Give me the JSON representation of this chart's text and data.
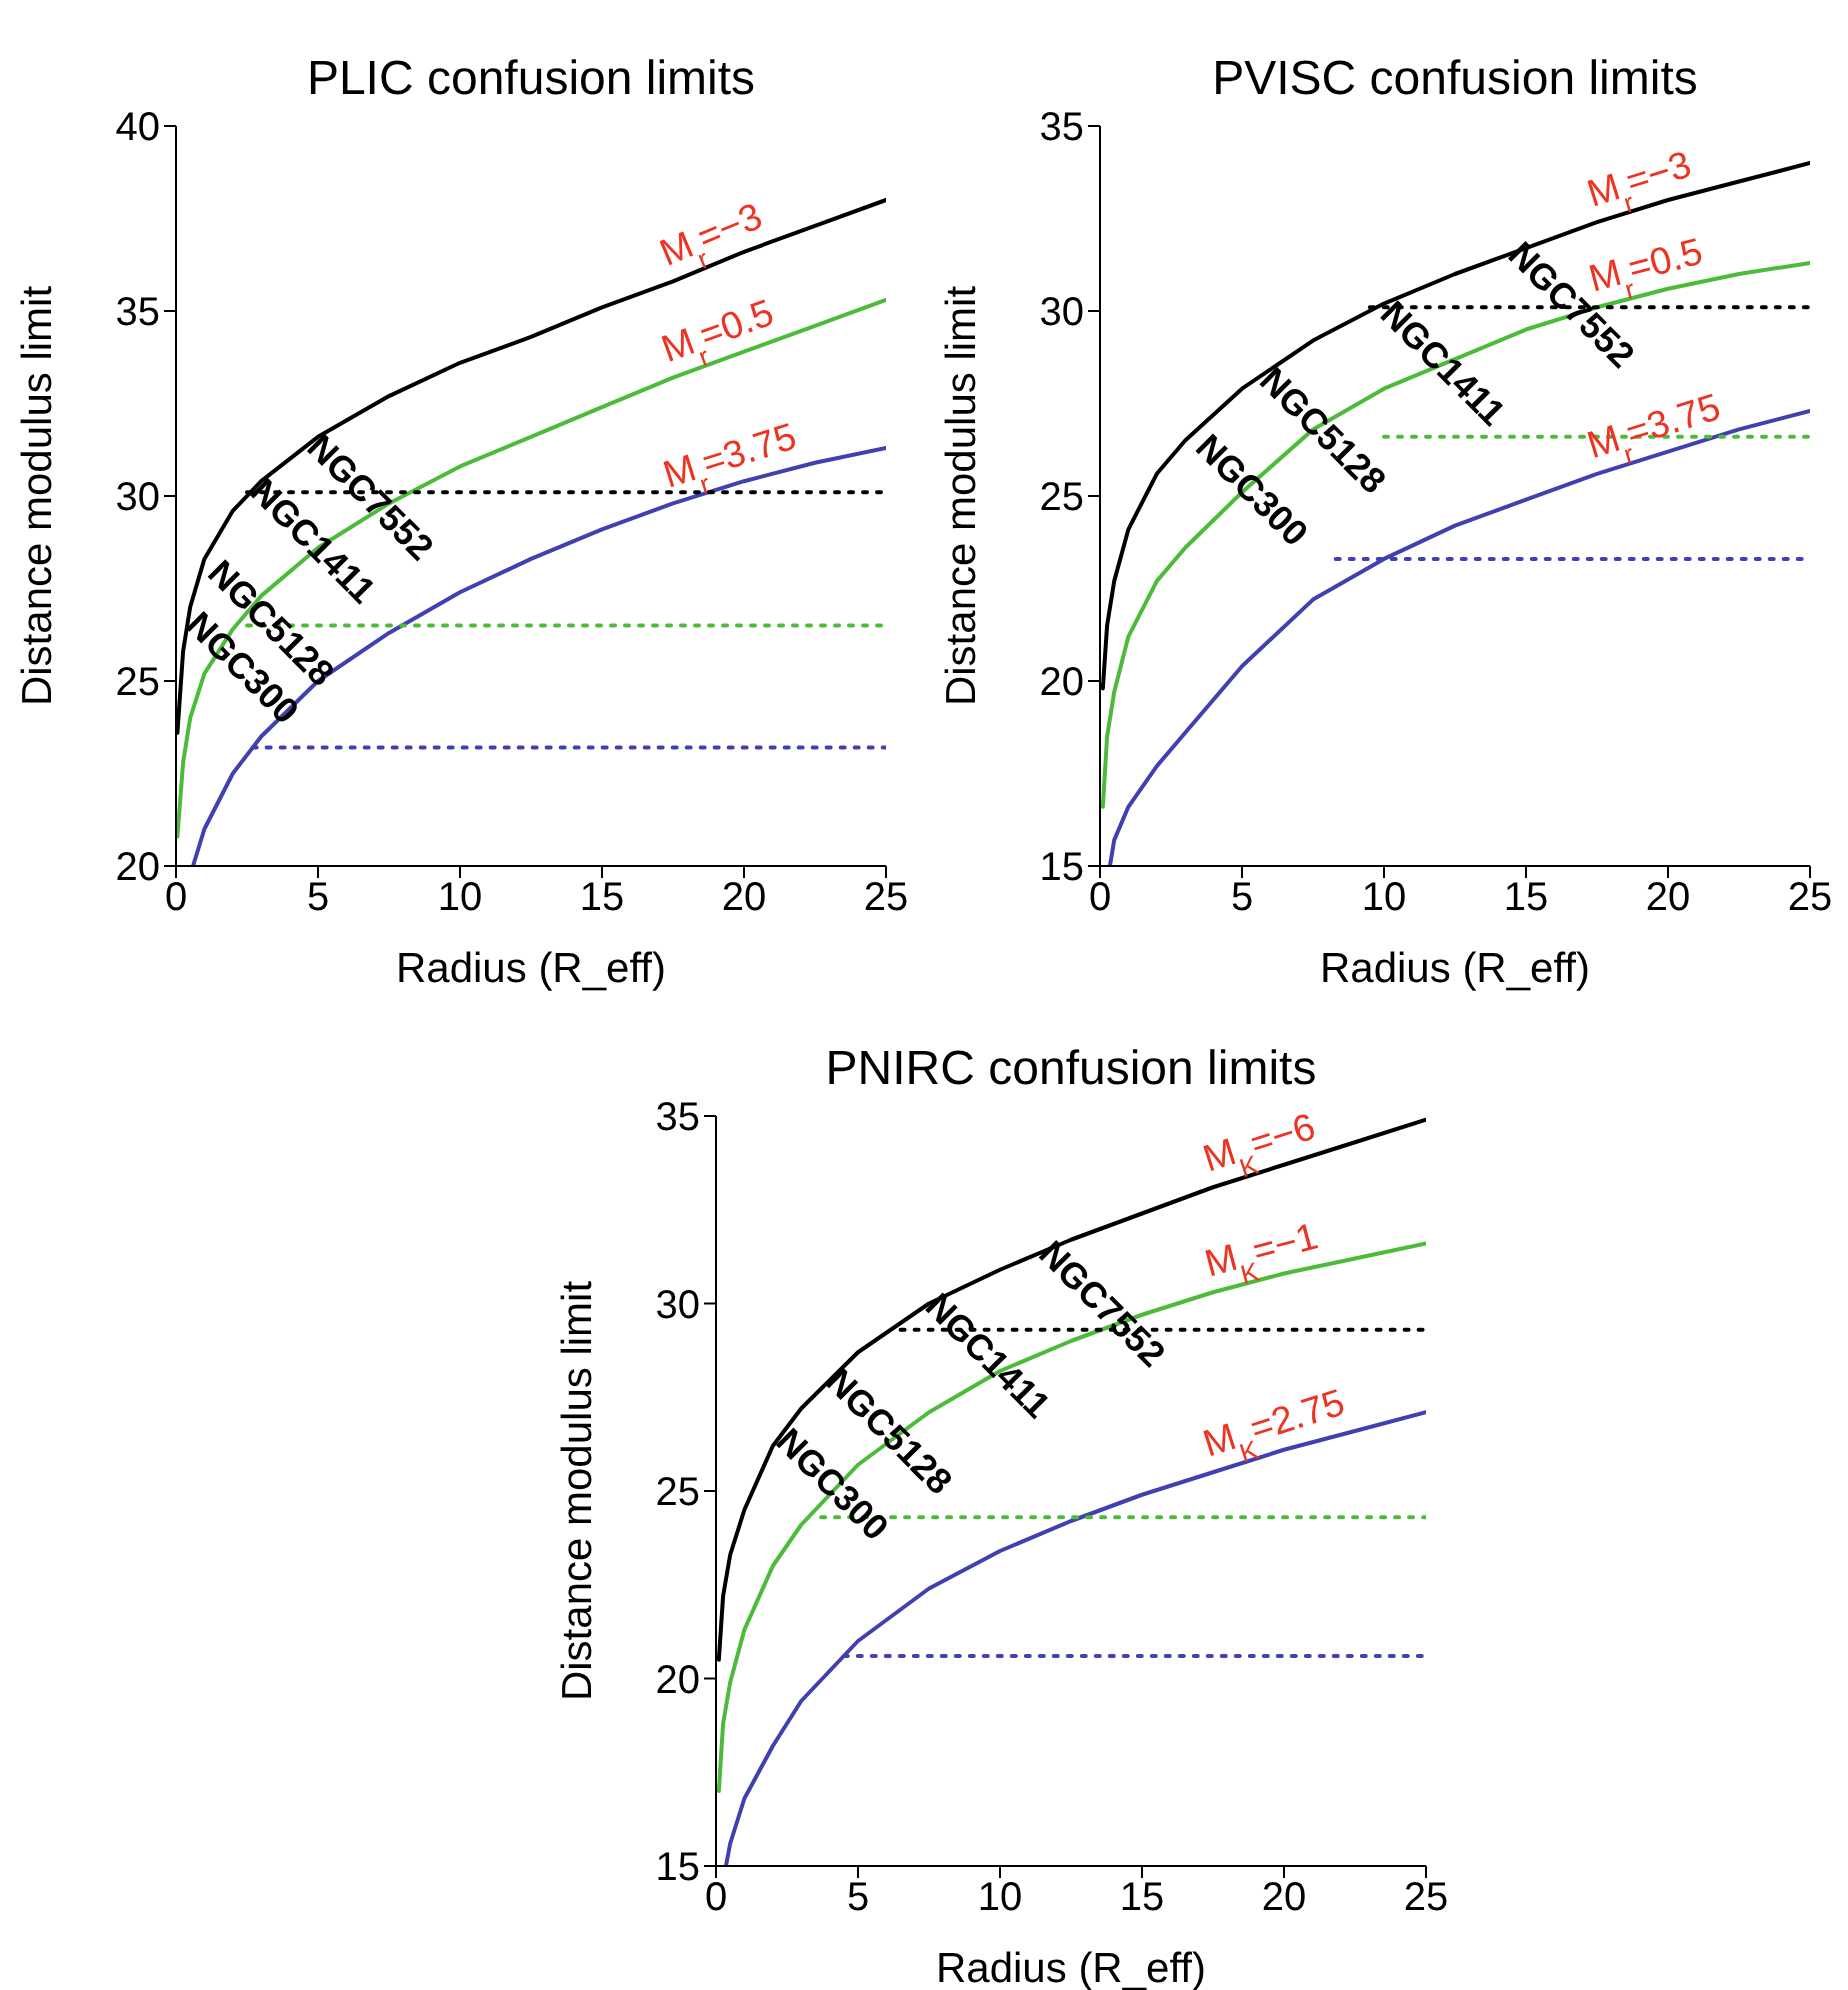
{
  "chart_data": [
    {
      "type": "line",
      "title": "PLIC confusion limits",
      "xlabel": "Radius (R_eff)",
      "ylabel": "Distance modulus limit",
      "xlim": [
        0,
        25
      ],
      "ylim": [
        20,
        40
      ],
      "xticks": [
        0,
        5,
        10,
        15,
        20,
        25
      ],
      "yticks": [
        20,
        25,
        30,
        35,
        40
      ],
      "grid": false,
      "legend": false,
      "marker": "none",
      "series": [
        {
          "name": "M$_{r}$=−3",
          "color": "#000000",
          "line_style": "solid",
          "x": [
            0.05,
            0.25,
            0.5,
            1,
            2,
            3,
            5,
            7.5,
            10,
            12.5,
            15,
            17.5,
            20,
            22.5,
            25
          ],
          "values": [
            23.6,
            25.8,
            27.0,
            28.3,
            29.6,
            30.4,
            31.6,
            32.7,
            33.6,
            34.3,
            35.1,
            35.8,
            36.6,
            37.3,
            38.0
          ]
        },
        {
          "name": "M$_{r}$=0.5",
          "color": "#4cbb3a",
          "line_style": "solid",
          "x": [
            0.05,
            0.25,
            0.5,
            1,
            2,
            3,
            5,
            7.5,
            10,
            12.5,
            15,
            17.5,
            20,
            22.5,
            25
          ],
          "values": [
            20.8,
            22.8,
            24.0,
            25.2,
            26.4,
            27.3,
            28.6,
            29.8,
            30.8,
            31.6,
            32.4,
            33.2,
            33.9,
            34.6,
            35.3
          ]
        },
        {
          "name": "M$_{r}$=3.75",
          "color": "#4040b0",
          "line_style": "solid",
          "x": [
            0.6,
            1,
            2,
            3,
            5,
            7.5,
            10,
            12.5,
            15,
            17.5,
            20,
            22.5,
            25
          ],
          "values": [
            20.0,
            21.0,
            22.5,
            23.5,
            25.0,
            26.3,
            27.4,
            28.3,
            29.1,
            29.8,
            30.4,
            30.9,
            31.3
          ]
        },
        {
          "color": "#000000",
          "line_style": "dotted",
          "x": [
            2.5,
            25
          ],
          "values": [
            30.1,
            30.1
          ]
        },
        {
          "color": "#4cbb3a",
          "line_style": "dotted",
          "x": [
            2.5,
            25
          ],
          "values": [
            26.5,
            26.5
          ]
        },
        {
          "color": "#4040b0",
          "line_style": "dotted",
          "x": [
            2.7,
            25
          ],
          "values": [
            23.2,
            23.2
          ]
        }
      ],
      "annotations": [
        "NGC7552",
        "NGC1411",
        "NGC5128",
        "NGC300"
      ]
    },
    {
      "type": "line",
      "title": "PVISC confusion limits",
      "xlabel": "Radius (R_eff)",
      "ylabel": "Distance modulus limit",
      "xlim": [
        0,
        25
      ],
      "ylim": [
        15,
        35
      ],
      "xticks": [
        0,
        5,
        10,
        15,
        20,
        25
      ],
      "yticks": [
        15,
        20,
        25,
        30,
        35
      ],
      "grid": false,
      "legend": false,
      "marker": "none",
      "series": [
        {
          "name": "M$_{r}$=−3",
          "color": "#000000",
          "line_style": "solid",
          "x": [
            0.1,
            0.25,
            0.5,
            1,
            2,
            3,
            5,
            7.5,
            10,
            12.5,
            15,
            17.5,
            20,
            22.5,
            25
          ],
          "values": [
            19.8,
            21.5,
            22.7,
            24.1,
            25.6,
            26.5,
            27.9,
            29.2,
            30.2,
            31.0,
            31.7,
            32.4,
            33.0,
            33.5,
            34.0
          ]
        },
        {
          "name": "M$_{r}$=0.5",
          "color": "#4cbb3a",
          "line_style": "solid",
          "x": [
            0.1,
            0.25,
            0.5,
            1,
            2,
            3,
            5,
            7.5,
            10,
            12.5,
            15,
            17.5,
            20,
            22.5,
            25
          ],
          "values": [
            16.6,
            18.5,
            19.7,
            21.2,
            22.7,
            23.6,
            25.1,
            26.8,
            27.9,
            28.7,
            29.5,
            30.1,
            30.6,
            31.0,
            31.3
          ]
        },
        {
          "name": "M$_{r}$=3.75",
          "color": "#4040b0",
          "line_style": "solid",
          "x": [
            0.35,
            0.5,
            1,
            2,
            3,
            5,
            7.5,
            10,
            12.5,
            15,
            17.5,
            20,
            22.5,
            25
          ],
          "values": [
            15.0,
            15.7,
            16.6,
            17.7,
            18.6,
            20.4,
            22.2,
            23.3,
            24.2,
            24.9,
            25.6,
            26.2,
            26.8,
            27.3
          ]
        },
        {
          "color": "#000000",
          "line_style": "dotted",
          "x": [
            9.5,
            25
          ],
          "values": [
            30.1,
            30.1
          ]
        },
        {
          "color": "#4cbb3a",
          "line_style": "dotted",
          "x": [
            10,
            25
          ],
          "values": [
            26.6,
            26.6
          ]
        },
        {
          "color": "#4040b0",
          "line_style": "dotted",
          "x": [
            8.3,
            25
          ],
          "values": [
            23.3,
            23.3
          ]
        }
      ],
      "annotations": [
        "NGC7552",
        "NGC1411",
        "NGC5128",
        "NGC300"
      ]
    },
    {
      "type": "line",
      "title": "PNIRC confusion limits",
      "xlabel": "Radius (R_eff)",
      "ylabel": "Distance modulus limit",
      "xlim": [
        0,
        25
      ],
      "ylim": [
        15,
        35
      ],
      "xticks": [
        0,
        5,
        10,
        15,
        20,
        25
      ],
      "yticks": [
        15,
        20,
        25,
        30,
        35
      ],
      "grid": false,
      "legend": false,
      "marker": "none",
      "series": [
        {
          "name": "M$_{K}$=−6",
          "color": "#000000",
          "line_style": "solid",
          "x": [
            0.1,
            0.25,
            0.5,
            1,
            2,
            3,
            5,
            7.5,
            10,
            12.5,
            15,
            17.5,
            20,
            22.5,
            25
          ],
          "values": [
            20.5,
            22.2,
            23.3,
            24.5,
            26.2,
            27.2,
            28.7,
            30.0,
            30.9,
            31.7,
            32.4,
            33.1,
            33.7,
            34.3,
            34.9
          ]
        },
        {
          "name": "M$_{K}$=−1",
          "color": "#4cbb3a",
          "line_style": "solid",
          "x": [
            0.1,
            0.25,
            0.5,
            1,
            2,
            3,
            5,
            7.5,
            10,
            12.5,
            15,
            17.5,
            20,
            22.5,
            25
          ],
          "values": [
            17.0,
            18.8,
            19.9,
            21.3,
            23.0,
            24.1,
            25.7,
            27.1,
            28.2,
            29.0,
            29.7,
            30.3,
            30.8,
            31.2,
            31.6
          ]
        },
        {
          "name": "M$_{K}$=2.75",
          "color": "#4040b0",
          "line_style": "solid",
          "x": [
            0.35,
            0.5,
            1,
            2,
            3,
            5,
            7.5,
            10,
            12.5,
            15,
            17.5,
            20,
            22.5,
            25
          ],
          "values": [
            15.0,
            15.6,
            16.8,
            18.2,
            19.4,
            21.0,
            22.4,
            23.4,
            24.2,
            24.9,
            25.5,
            26.1,
            26.6,
            27.1
          ]
        },
        {
          "color": "#000000",
          "line_style": "dotted",
          "x": [
            6.5,
            25
          ],
          "values": [
            29.3,
            29.3
          ]
        },
        {
          "color": "#4cbb3a",
          "line_style": "dotted",
          "x": [
            3.7,
            25
          ],
          "values": [
            24.3,
            24.3
          ]
        },
        {
          "color": "#4040b0",
          "line_style": "dotted",
          "x": [
            4.5,
            25
          ],
          "values": [
            20.6,
            20.6
          ]
        }
      ],
      "annotations": [
        "NGC7552",
        "NGC1411",
        "NGC5128",
        "NGC300"
      ]
    }
  ]
}
